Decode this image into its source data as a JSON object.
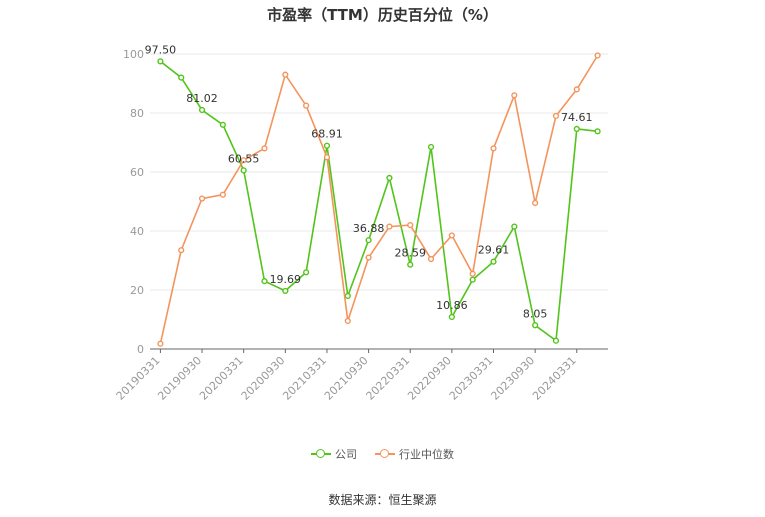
{
  "chart_data": {
    "type": "line",
    "title": "市盈率（TTM）历史百分位（%）",
    "xlabel": "",
    "ylabel": "",
    "ylim": [
      0,
      100
    ],
    "yticks": [
      0,
      20,
      40,
      60,
      80,
      100
    ],
    "grid": true,
    "legend_position": "bottom",
    "x": [
      "20190331",
      "20190630",
      "20190930",
      "20191231",
      "20200331",
      "20200630",
      "20200930",
      "20201231",
      "20210331",
      "20210630",
      "20210930",
      "20211231",
      "20220331",
      "20220630",
      "20220930",
      "20221231",
      "20230331",
      "20230630",
      "20230930",
      "20231231",
      "20240331",
      "20240630"
    ],
    "x_tick_labels": [
      "20190331",
      "20190930",
      "20200331",
      "20200930",
      "20210331",
      "20210930",
      "20220331",
      "20220930",
      "20230331",
      "20230930",
      "20240331"
    ],
    "series": [
      {
        "name": "公司",
        "color": "#52c41a",
        "values": [
          97.5,
          92.0,
          81.02,
          76.0,
          60.55,
          23.0,
          19.69,
          26.0,
          68.91,
          18.0,
          36.88,
          58.0,
          28.59,
          68.5,
          10.86,
          23.5,
          29.61,
          41.5,
          8.05,
          2.8,
          74.61,
          73.8
        ],
        "labels": {
          "0": "97.50",
          "2": "81.02",
          "4": "60.55",
          "6": "19.69",
          "8": "68.91",
          "10": "36.88",
          "12": "28.59",
          "14": "10.86",
          "16": "29.61",
          "18": "8.05",
          "20": "74.61"
        }
      },
      {
        "name": "行业中位数",
        "color": "#f4945d",
        "values": [
          1.8,
          33.5,
          51.0,
          52.3,
          64.0,
          68.0,
          93.0,
          82.5,
          65.0,
          9.5,
          31.0,
          41.5,
          42.0,
          30.5,
          38.5,
          25.5,
          68.0,
          86.0,
          49.5,
          79.0,
          88.0,
          99.5
        ]
      }
    ]
  },
  "legend": {
    "company": "公司",
    "industry": "行业中位数"
  },
  "source": "数据来源：恒生聚源"
}
